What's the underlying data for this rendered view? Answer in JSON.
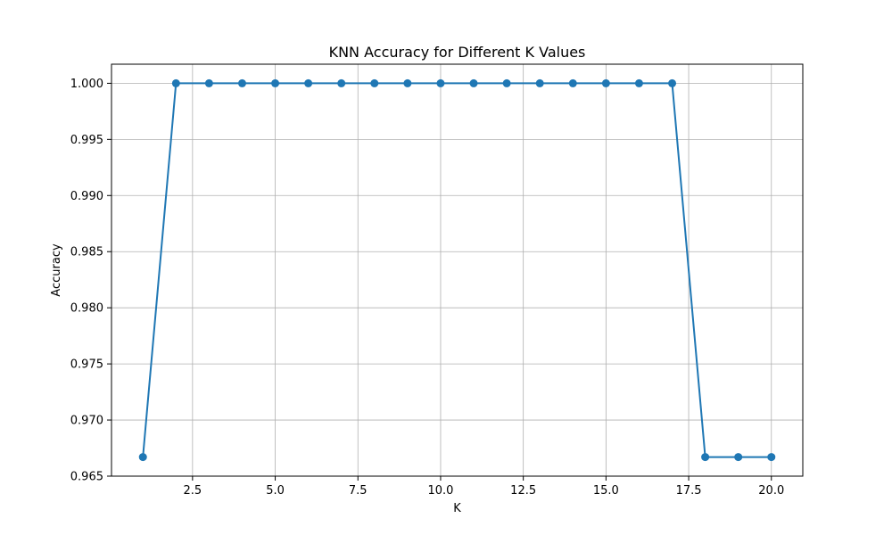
{
  "chart_data": {
    "type": "line",
    "title": "KNN Accuracy for Different K Values",
    "xlabel": "K",
    "ylabel": "Accuracy",
    "xlim": [
      0.05,
      20.95
    ],
    "ylim": [
      0.965,
      1.0017
    ],
    "grid": true,
    "x_ticks": [
      2.5,
      5.0,
      7.5,
      10.0,
      12.5,
      15.0,
      17.5,
      20.0
    ],
    "x_tick_labels": [
      "2.5",
      "5.0",
      "7.5",
      "10.0",
      "12.5",
      "15.0",
      "17.5",
      "20.0"
    ],
    "y_ticks": [
      0.965,
      0.97,
      0.975,
      0.98,
      0.985,
      0.99,
      0.995,
      1.0
    ],
    "y_tick_labels": [
      "0.965",
      "0.970",
      "0.975",
      "0.980",
      "0.985",
      "0.990",
      "0.995",
      "1.000"
    ],
    "series": [
      {
        "color": "#1f77b4",
        "marker": "circle",
        "x": [
          1,
          2,
          3,
          4,
          5,
          6,
          7,
          8,
          9,
          10,
          11,
          12,
          13,
          14,
          15,
          16,
          17,
          18,
          19,
          20
        ],
        "y": [
          0.9667,
          1.0,
          1.0,
          1.0,
          1.0,
          1.0,
          1.0,
          1.0,
          1.0,
          1.0,
          1.0,
          1.0,
          1.0,
          1.0,
          1.0,
          1.0,
          1.0,
          0.9667,
          0.9667,
          0.9667
        ]
      }
    ]
  }
}
